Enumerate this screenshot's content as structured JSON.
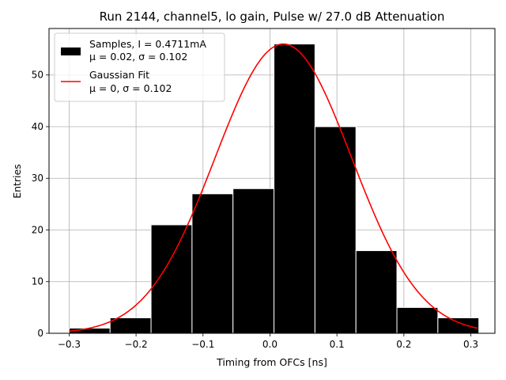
{
  "chart_data": {
    "type": "bar",
    "title": "Run 2144, channel5, lo gain, Pulse w/ 27.0 dB Attenuation",
    "xlabel": "Timing from OFCs [ns]",
    "ylabel": "Entries",
    "xlim": [
      -0.33,
      0.336
    ],
    "ylim": [
      0,
      59
    ],
    "xticks": [
      -0.3,
      -0.2,
      -0.1,
      0.0,
      0.1,
      0.2,
      0.3
    ],
    "xtick_labels": [
      "−0.3",
      "−0.2",
      "−0.1",
      "0.0",
      "0.1",
      "0.2",
      "0.3"
    ],
    "yticks": [
      0,
      10,
      20,
      30,
      40,
      50
    ],
    "ytick_labels": [
      "0",
      "10",
      "20",
      "30",
      "40",
      "50"
    ],
    "grid": true,
    "legend_position": "top-left",
    "histogram": {
      "name": "Samples, I = 0.4711mA",
      "stats": "μ = 0.02, σ = 0.102",
      "color": "#000000",
      "edge_color": "#ffffff",
      "bin_edges": [
        -0.3,
        -0.2388,
        -0.1776,
        -0.1164,
        -0.0552,
        0.006,
        0.0672,
        0.1284,
        0.1896,
        0.2508,
        0.312
      ],
      "counts": [
        1,
        3,
        21,
        27,
        28,
        56,
        40,
        16,
        5,
        3
      ]
    },
    "fit": {
      "name": "Gaussian Fit",
      "stats": "μ = 0, σ = 0.102",
      "color": "#ff0000",
      "amplitude": 56,
      "mean": 0.02,
      "sigma": 0.102,
      "x_range": [
        -0.3,
        0.31
      ]
    }
  }
}
